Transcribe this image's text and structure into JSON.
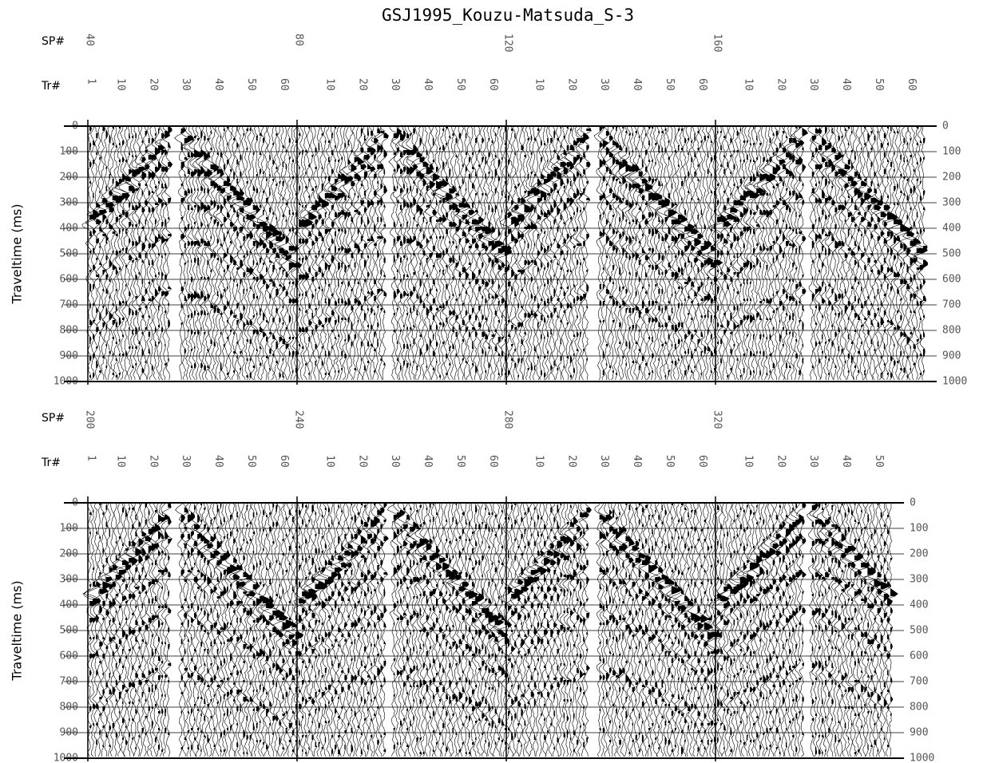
{
  "title": "GSJ1995_Kouzu-Matsuda_S-3",
  "chart_data": [
    {
      "type": "seismic",
      "sp_label": "SP#",
      "tr_label": "Tr#",
      "ylabel": "Traveltime (ms)",
      "ylim": [
        0,
        1000
      ],
      "yticks": [
        0,
        100,
        200,
        300,
        400,
        500,
        600,
        700,
        800,
        900,
        1000
      ],
      "shots": [
        {
          "sp": 40,
          "tr_ticks": [
            1,
            10,
            20,
            30,
            40,
            50,
            60
          ]
        },
        {
          "sp": 80,
          "tr_ticks": [
            10,
            20,
            30,
            40,
            50,
            60
          ]
        },
        {
          "sp": 120,
          "tr_ticks": [
            10,
            20,
            30,
            40,
            50,
            60
          ]
        },
        {
          "sp": 160,
          "tr_ticks": [
            10,
            20,
            30,
            40,
            50,
            60
          ]
        }
      ]
    },
    {
      "type": "seismic",
      "sp_label": "SP#",
      "tr_label": "Tr#",
      "ylabel": "Traveltime (ms)",
      "ylim": [
        0,
        1000
      ],
      "yticks": [
        0,
        100,
        200,
        300,
        400,
        500,
        600,
        700,
        800,
        900,
        1000
      ],
      "shots": [
        {
          "sp": 200,
          "tr_ticks": [
            1,
            10,
            20,
            30,
            40,
            50,
            60
          ]
        },
        {
          "sp": 240,
          "tr_ticks": [
            10,
            20,
            30,
            40,
            50,
            60
          ]
        },
        {
          "sp": 280,
          "tr_ticks": [
            10,
            20,
            30,
            40,
            50,
            60
          ]
        },
        {
          "sp": 320,
          "tr_ticks": [
            10,
            20,
            30,
            40,
            50
          ]
        }
      ]
    }
  ]
}
